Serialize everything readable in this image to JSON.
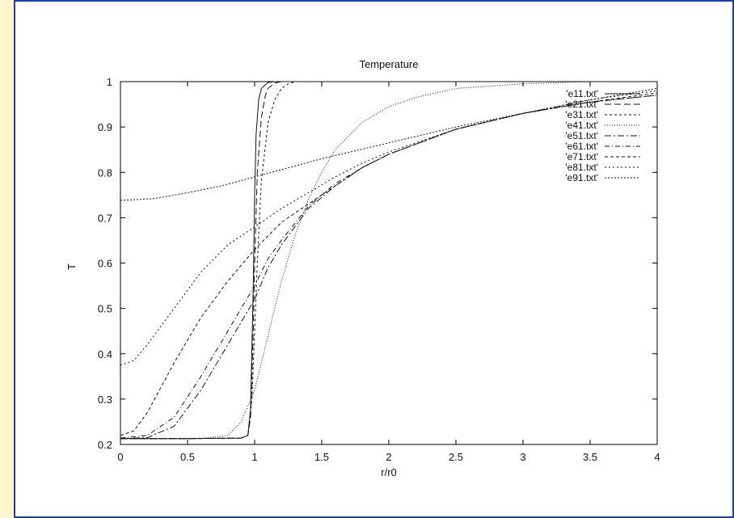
{
  "chart_data": {
    "type": "line",
    "title": "Temperature",
    "xlabel": "r/r0",
    "ylabel": "T",
    "xlim": [
      0,
      4
    ],
    "ylim": [
      0.2,
      1
    ],
    "xticks": [
      0,
      0.5,
      1,
      1.5,
      2,
      2.5,
      3,
      3.5,
      4
    ],
    "yticks": [
      0.2,
      0.3,
      0.4,
      0.5,
      0.6,
      0.7,
      0.8,
      0.9,
      1
    ],
    "xtick_labels": [
      "0",
      "0.5",
      "1",
      "1.5",
      "2",
      "2.5",
      "3",
      "3.5",
      "4"
    ],
    "ytick_labels": [
      "0.2",
      "0.3",
      "0.4",
      "0.5",
      "0.6",
      "0.7",
      "0.8",
      "0.9",
      "1"
    ],
    "grid": false,
    "legend_position": "top-right",
    "series": [
      {
        "name": "'e11.txt'",
        "dash": "",
        "x": [
          0,
          0.5,
          0.9,
          0.95,
          0.97,
          0.99,
          1.0,
          1.01,
          1.03,
          1.05,
          1.1,
          1.15,
          1.2,
          1.5,
          2,
          4
        ],
        "y": [
          0.213,
          0.213,
          0.214,
          0.22,
          0.28,
          0.55,
          0.75,
          0.88,
          0.96,
          0.985,
          0.998,
          1.0,
          1.0,
          1.0,
          1.0,
          1.0
        ]
      },
      {
        "name": "'e21.txt'",
        "dash": "8,4",
        "x": [
          0,
          0.5,
          0.9,
          0.95,
          0.97,
          0.99,
          1.0,
          1.02,
          1.05,
          1.08,
          1.1,
          1.15,
          1.2,
          1.5,
          2,
          4
        ],
        "y": [
          0.213,
          0.213,
          0.214,
          0.22,
          0.26,
          0.45,
          0.6,
          0.8,
          0.92,
          0.97,
          0.985,
          0.997,
          1.0,
          1.0,
          1.0,
          1.0
        ]
      },
      {
        "name": "'e31.txt'",
        "dash": "3,3",
        "x": [
          0,
          0.5,
          0.9,
          0.95,
          0.98,
          1.0,
          1.02,
          1.05,
          1.1,
          1.15,
          1.2,
          1.25,
          1.3,
          1.5,
          2,
          4
        ],
        "y": [
          0.213,
          0.213,
          0.214,
          0.22,
          0.3,
          0.45,
          0.6,
          0.78,
          0.91,
          0.96,
          0.985,
          0.995,
          1.0,
          1.0,
          1.0,
          1.0
        ]
      },
      {
        "name": "'e41.txt'",
        "dash": "1,2",
        "x": [
          0,
          0.6,
          0.8,
          0.9,
          1.0,
          1.1,
          1.2,
          1.3,
          1.4,
          1.5,
          1.6,
          1.8,
          2.0,
          2.2,
          2.5,
          3.0,
          3.5,
          4.0
        ],
        "y": [
          0.213,
          0.213,
          0.22,
          0.25,
          0.32,
          0.44,
          0.56,
          0.66,
          0.74,
          0.8,
          0.85,
          0.91,
          0.945,
          0.965,
          0.985,
          0.995,
          1.0,
          1.0
        ]
      },
      {
        "name": "'e51.txt'",
        "dash": "8,3,2,3",
        "x": [
          0,
          0.2,
          0.4,
          0.6,
          0.8,
          0.9,
          1.0,
          1.1,
          1.2,
          1.4,
          1.6,
          1.8,
          2.0,
          2.5,
          3.0,
          3.5,
          4.0
        ],
        "y": [
          0.213,
          0.215,
          0.24,
          0.32,
          0.42,
          0.47,
          0.52,
          0.59,
          0.64,
          0.72,
          0.77,
          0.81,
          0.84,
          0.895,
          0.93,
          0.955,
          0.97
        ]
      },
      {
        "name": "'e61.txt'",
        "dash": "6,3,1,3",
        "x": [
          0,
          0.2,
          0.4,
          0.6,
          0.8,
          0.9,
          1.0,
          1.1,
          1.2,
          1.4,
          1.6,
          1.8,
          2.0,
          2.5,
          3.0,
          3.5,
          4.0
        ],
        "y": [
          0.214,
          0.22,
          0.26,
          0.35,
          0.45,
          0.5,
          0.55,
          0.61,
          0.65,
          0.725,
          0.775,
          0.81,
          0.84,
          0.895,
          0.93,
          0.955,
          0.97
        ]
      },
      {
        "name": "'e71.txt'",
        "dash": "4,3",
        "x": [
          0,
          0.1,
          0.2,
          0.4,
          0.6,
          0.8,
          1.0,
          1.2,
          1.4,
          1.6,
          1.8,
          2.0,
          2.5,
          3.0,
          3.5,
          4.0
        ],
        "y": [
          0.22,
          0.23,
          0.27,
          0.38,
          0.48,
          0.56,
          0.63,
          0.69,
          0.73,
          0.77,
          0.81,
          0.84,
          0.895,
          0.93,
          0.955,
          0.975
        ]
      },
      {
        "name": "'e81.txt'",
        "dash": "2,3",
        "x": [
          0,
          0.1,
          0.2,
          0.4,
          0.6,
          0.8,
          1.0,
          1.2,
          1.4,
          1.6,
          1.8,
          2.0,
          2.5,
          3.0,
          3.5,
          4.0
        ],
        "y": [
          0.375,
          0.385,
          0.42,
          0.5,
          0.58,
          0.64,
          0.68,
          0.72,
          0.755,
          0.79,
          0.82,
          0.845,
          0.895,
          0.93,
          0.96,
          0.98
        ]
      },
      {
        "name": "'e91.txt'",
        "dash": "2,2",
        "x": [
          0,
          0.25,
          0.5,
          0.75,
          1.0,
          1.5,
          2.0,
          2.5,
          3.0,
          3.5,
          4.0
        ],
        "y": [
          0.738,
          0.742,
          0.755,
          0.77,
          0.79,
          0.83,
          0.865,
          0.9,
          0.93,
          0.96,
          0.985
        ]
      }
    ]
  }
}
